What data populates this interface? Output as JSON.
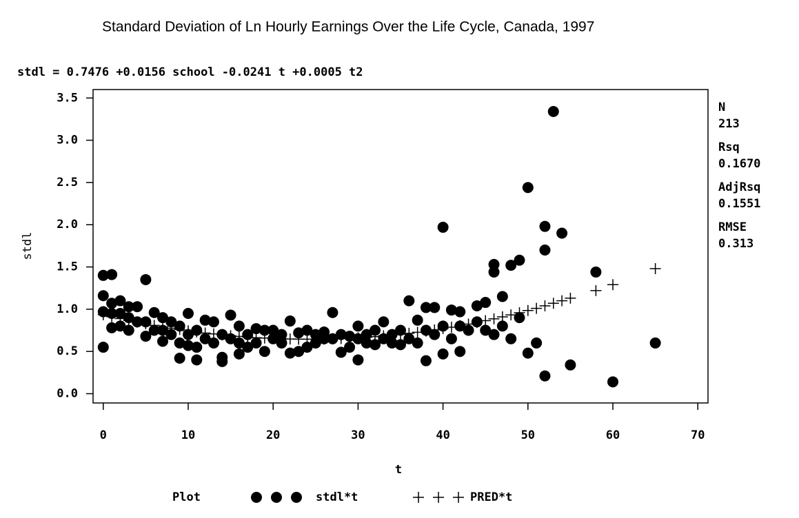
{
  "chart_data": {
    "type": "scatter",
    "title": "Standard Deviation of Ln Hourly Earnings Over the Life Cycle, Canada, 1997",
    "equation": "stdl = 0.7476 +0.0156 school -0.0241 t +0.0005 t2",
    "x_label": "t",
    "y_label": "stdl",
    "legend_title": "Plot",
    "stats": [
      {
        "name": "N",
        "value": "213"
      },
      {
        "name": "Rsq",
        "value": "0.1670"
      },
      {
        "name": "AdjRsq",
        "value": "0.1551"
      },
      {
        "name": "RMSE",
        "value": "0.313"
      }
    ],
    "xlim": [
      -1.2,
      71.2
    ],
    "ylim": [
      -0.11,
      3.6
    ],
    "xticks": [
      0,
      10,
      20,
      30,
      40,
      50,
      60,
      70
    ],
    "yticks": [
      {
        "value": 0,
        "label": "0.0"
      },
      0.5,
      {
        "value": 1,
        "label": "1.0"
      },
      1.5,
      {
        "value": 2,
        "label": "2.0"
      },
      2.5,
      {
        "value": 3,
        "label": "3.0"
      },
      3.5
    ],
    "series": [
      {
        "name": "stdl*t",
        "marker": "dot",
        "color": "#000000",
        "x": [
          0,
          0,
          0,
          0,
          1,
          1,
          1,
          1,
          2,
          2,
          2,
          3,
          3,
          3,
          4,
          4,
          5,
          5,
          5,
          6,
          6,
          7,
          7,
          7,
          8,
          8,
          9,
          9,
          9,
          10,
          10,
          10,
          11,
          11,
          11,
          12,
          12,
          13,
          13,
          14,
          14,
          14,
          15,
          15,
          16,
          16,
          16,
          17,
          17,
          18,
          18,
          19,
          19,
          20,
          20,
          21,
          21,
          22,
          22,
          23,
          23,
          24,
          24,
          25,
          25,
          26,
          26,
          27,
          27,
          28,
          28,
          29,
          29,
          30,
          30,
          30,
          31,
          31,
          32,
          32,
          33,
          33,
          34,
          34,
          35,
          35,
          36,
          36,
          37,
          37,
          38,
          38,
          38,
          39,
          39,
          40,
          40,
          40,
          41,
          41,
          42,
          42,
          42,
          43,
          44,
          44,
          45,
          45,
          46,
          46,
          46,
          47,
          47,
          48,
          48,
          49,
          49,
          50,
          50,
          51,
          52,
          52,
          52,
          53,
          54,
          55,
          58,
          60,
          65
        ],
        "values": [
          1.4,
          1.16,
          0.97,
          0.55,
          1.41,
          1.07,
          0.78,
          0.95,
          1.1,
          0.95,
          0.8,
          1.03,
          0.75,
          0.9,
          1.03,
          0.85,
          1.35,
          0.68,
          0.85,
          0.96,
          0.75,
          0.62,
          0.9,
          0.75,
          0.85,
          0.7,
          0.42,
          0.6,
          0.8,
          0.95,
          0.57,
          0.7,
          0.4,
          0.55,
          0.75,
          0.87,
          0.65,
          0.85,
          0.6,
          0.38,
          0.43,
          0.7,
          0.93,
          0.65,
          0.47,
          0.8,
          0.6,
          0.7,
          0.55,
          0.77,
          0.6,
          0.5,
          0.75,
          0.75,
          0.65,
          0.7,
          0.6,
          0.86,
          0.48,
          0.72,
          0.5,
          0.75,
          0.55,
          0.7,
          0.6,
          0.73,
          0.65,
          0.96,
          0.65,
          0.49,
          0.7,
          0.55,
          0.68,
          0.4,
          0.8,
          0.65,
          0.7,
          0.6,
          0.75,
          0.58,
          0.85,
          0.65,
          0.7,
          0.6,
          0.75,
          0.58,
          1.1,
          0.65,
          0.87,
          0.6,
          0.39,
          1.02,
          0.75,
          1.02,
          0.7,
          1.97,
          0.47,
          0.8,
          0.99,
          0.65,
          0.97,
          0.5,
          0.8,
          0.75,
          1.04,
          0.85,
          1.08,
          0.75,
          1.53,
          1.44,
          0.7,
          1.15,
          0.8,
          1.52,
          0.65,
          1.58,
          0.9,
          2.44,
          0.48,
          0.6,
          1.98,
          1.7,
          0.21,
          3.34,
          1.9,
          0.34,
          1.44,
          0.14,
          0.6
        ]
      },
      {
        "name": "PRED*t",
        "marker": "plus",
        "color": "#000000",
        "x": [
          0,
          1,
          2,
          3,
          4,
          5,
          6,
          7,
          8,
          9,
          10,
          11,
          12,
          13,
          14,
          15,
          16,
          17,
          18,
          19,
          20,
          21,
          22,
          23,
          24,
          25,
          26,
          27,
          28,
          29,
          30,
          31,
          32,
          33,
          34,
          35,
          36,
          37,
          38,
          39,
          40,
          41,
          42,
          43,
          44,
          45,
          46,
          47,
          48,
          49,
          50,
          51,
          52,
          53,
          54,
          55,
          58,
          60,
          65
        ],
        "values": [
          0.935,
          0.911,
          0.889,
          0.867,
          0.847,
          0.827,
          0.808,
          0.791,
          0.775,
          0.76,
          0.744,
          0.731,
          0.718,
          0.707,
          0.696,
          0.686,
          0.678,
          0.67,
          0.663,
          0.658,
          0.653,
          0.649,
          0.647,
          0.645,
          0.645,
          0.645,
          0.646,
          0.649,
          0.652,
          0.657,
          0.662,
          0.668,
          0.675,
          0.685,
          0.694,
          0.704,
          0.715,
          0.727,
          0.741,
          0.755,
          0.771,
          0.787,
          0.805,
          0.824,
          0.843,
          0.864,
          0.886,
          0.909,
          0.933,
          0.958,
          0.985,
          1.01,
          1.04,
          1.07,
          1.1,
          1.13,
          1.22,
          1.29,
          1.48
        ]
      }
    ]
  }
}
